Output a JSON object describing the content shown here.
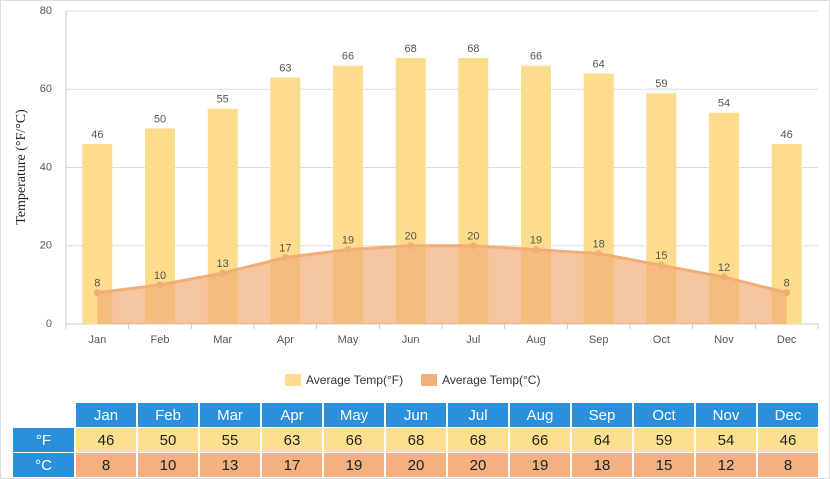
{
  "chart_data": {
    "type": "bar-area",
    "y_label": "Temperature (°F/°C)",
    "categories": [
      "Jan",
      "Feb",
      "Mar",
      "Apr",
      "May",
      "Jun",
      "Jul",
      "Aug",
      "Sep",
      "Oct",
      "Nov",
      "Dec"
    ],
    "series": [
      {
        "name": "Average Temp(°F)",
        "type": "bar",
        "color": "#fddc8c",
        "values": [
          46,
          50,
          55,
          63,
          66,
          68,
          68,
          66,
          64,
          59,
          54,
          46
        ]
      },
      {
        "name": "Average Temp(°C)",
        "type": "area",
        "color": "#f2ae78",
        "values": [
          8,
          10,
          13,
          17,
          19,
          20,
          20,
          19,
          18,
          15,
          12,
          8
        ]
      }
    ],
    "ylim": [
      0,
      80
    ],
    "yticks": [
      0,
      20,
      40,
      60,
      80
    ],
    "grid": true,
    "legend": "bottom"
  },
  "table": {
    "row_labels": [
      "°F",
      "°C"
    ],
    "header_color": "#2b90dc",
    "row_colors": [
      "#fde08f",
      "#f2b17e"
    ]
  }
}
